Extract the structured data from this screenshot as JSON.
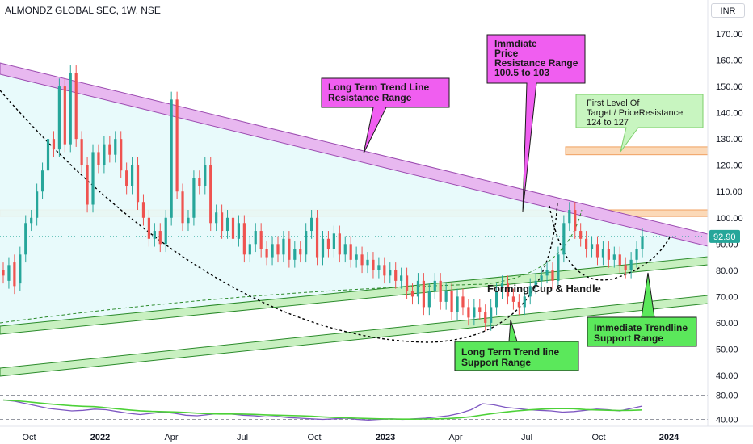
{
  "header": {
    "title": "ALMONDZ GLOBAL SEC, 1W, NSE",
    "currency": "INR"
  },
  "chart_data": {
    "type": "candlestick",
    "price_axis": {
      "ticks": [
        "170.00",
        "160.00",
        "150.00",
        "140.00",
        "130.00",
        "120.00",
        "110.00",
        "100.00",
        "90.00",
        "80.00",
        "70.00",
        "60.00",
        "50.00",
        "40.00"
      ],
      "ylim": [
        35,
        175
      ]
    },
    "last_price": {
      "label": "92.90",
      "value": 92.9
    },
    "time_axis": {
      "ticks": [
        "Oct",
        "2022",
        "Apr",
        "Jul",
        "Oct",
        "2023",
        "Apr",
        "Jul",
        "Oct",
        "2024"
      ]
    },
    "rsi_axis": {
      "ticks": [
        "80.00",
        "40.00"
      ]
    },
    "annotations": {
      "long_term_resistance": "Long Term Trend Line\nResistance Range",
      "immediate_resistance": "Immdiate\nPrice\nResistance Range\n100.5 to 103",
      "first_target": "First Level Of\nTarget / PriceResistance\n124 to 127",
      "cup_handle": "Forming Cup & Handle",
      "long_term_support": "Long Term Trend line\nSupport Range",
      "immediate_support": "Immediate Trendline\nSupport Range"
    },
    "zones": [
      {
        "name": "immediate-resistance",
        "from": 100.5,
        "to": 103
      },
      {
        "name": "first-target",
        "from": 124,
        "to": 127
      }
    ],
    "candles": [
      [
        80,
        78
      ],
      [
        76,
        82
      ],
      [
        83,
        74
      ],
      [
        75,
        86
      ],
      [
        86,
        98
      ],
      [
        98,
        100
      ],
      [
        100,
        110
      ],
      [
        110,
        118
      ],
      [
        118,
        130
      ],
      [
        130,
        126
      ],
      [
        126,
        150
      ],
      [
        150,
        128
      ],
      [
        128,
        155
      ],
      [
        155,
        130
      ],
      [
        130,
        120
      ],
      [
        120,
        105
      ],
      [
        105,
        125
      ],
      [
        125,
        120
      ],
      [
        120,
        128
      ],
      [
        128,
        124
      ],
      [
        124,
        130
      ],
      [
        130,
        118
      ],
      [
        118,
        112
      ],
      [
        112,
        120
      ],
      [
        120,
        106
      ],
      [
        106,
        100
      ],
      [
        100,
        92
      ],
      [
        92,
        95
      ],
      [
        95,
        90
      ],
      [
        90,
        100
      ],
      [
        100,
        145
      ],
      [
        145,
        110
      ],
      [
        110,
        98
      ],
      [
        98,
        100
      ],
      [
        100,
        115
      ],
      [
        115,
        112
      ],
      [
        112,
        120
      ],
      [
        120,
        98
      ],
      [
        98,
        102
      ],
      [
        102,
        95
      ],
      [
        95,
        100
      ],
      [
        100,
        92
      ],
      [
        92,
        98
      ],
      [
        98,
        86
      ],
      [
        86,
        90
      ],
      [
        90,
        95
      ],
      [
        95,
        88
      ],
      [
        88,
        85
      ],
      [
        85,
        90
      ],
      [
        90,
        86
      ],
      [
        86,
        92
      ],
      [
        92,
        84
      ],
      [
        84,
        88
      ],
      [
        88,
        86
      ],
      [
        86,
        95
      ],
      [
        95,
        100
      ],
      [
        100,
        85
      ],
      [
        85,
        92
      ],
      [
        92,
        88
      ],
      [
        88,
        94
      ],
      [
        94,
        86
      ],
      [
        86,
        90
      ],
      [
        90,
        84
      ],
      [
        84,
        86
      ],
      [
        86,
        82
      ],
      [
        82,
        84
      ],
      [
        84,
        80
      ],
      [
        80,
        82
      ],
      [
        82,
        78
      ],
      [
        78,
        80
      ],
      [
        80,
        76
      ],
      [
        76,
        78
      ],
      [
        78,
        72
      ],
      [
        72,
        70
      ],
      [
        70,
        76
      ],
      [
        76,
        66
      ],
      [
        66,
        72
      ],
      [
        72,
        76
      ],
      [
        76,
        68
      ],
      [
        68,
        72
      ],
      [
        72,
        64
      ],
      [
        64,
        70
      ],
      [
        70,
        66
      ],
      [
        66,
        62
      ],
      [
        62,
        66
      ],
      [
        66,
        64
      ],
      [
        64,
        60
      ],
      [
        60,
        66
      ],
      [
        66,
        72
      ],
      [
        72,
        75
      ],
      [
        75,
        70
      ],
      [
        70,
        68
      ],
      [
        68,
        66
      ],
      [
        66,
        70
      ],
      [
        70,
        74
      ],
      [
        74,
        76
      ],
      [
        76,
        78
      ],
      [
        78,
        80
      ],
      [
        80,
        76
      ],
      [
        76,
        86
      ],
      [
        86,
        98
      ],
      [
        98,
        103
      ],
      [
        103,
        95
      ],
      [
        95,
        92
      ],
      [
        92,
        88
      ],
      [
        88,
        90
      ],
      [
        90,
        85
      ],
      [
        85,
        88
      ],
      [
        88,
        84
      ],
      [
        84,
        86
      ],
      [
        86,
        82
      ],
      [
        82,
        80
      ],
      [
        80,
        84
      ],
      [
        84,
        88
      ],
      [
        88,
        93
      ]
    ],
    "rsi": [
      72,
      70,
      66,
      62,
      58,
      56,
      54,
      55,
      57,
      56,
      53,
      50,
      48,
      50,
      52,
      50,
      47,
      46,
      48,
      50,
      49,
      47,
      46,
      44,
      45,
      43,
      42,
      41,
      40,
      41,
      42,
      40,
      39,
      40,
      41,
      40,
      41,
      42,
      44,
      46,
      50,
      56,
      66,
      64,
      60,
      58,
      56,
      55,
      54,
      52,
      53,
      55,
      57,
      56,
      54,
      58,
      62
    ]
  }
}
